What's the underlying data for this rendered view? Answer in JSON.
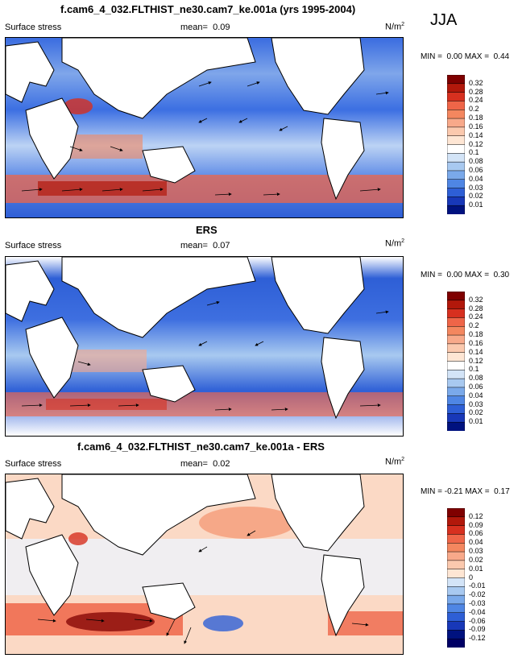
{
  "season": "JJA",
  "panels": [
    {
      "title": "f.cam6_4_032.FLTHIST_ne30.cam7_ke.001a (yrs 1995-2004)",
      "variable": "Surface stress",
      "mean_label": "mean=",
      "mean": "0.09",
      "units": "N/m",
      "units_sup": "2",
      "min_label": "MIN =",
      "min": "0.00",
      "max_label": "MAX =",
      "max": "0.44"
    },
    {
      "title": "ERS",
      "variable": "Surface stress",
      "mean_label": "mean=",
      "mean": "0.07",
      "units": "N/m",
      "units_sup": "2",
      "min_label": "MIN =",
      "min": "0.00",
      "max_label": "MAX =",
      "max": "0.30"
    },
    {
      "title": "f.cam6_4_032.FLTHIST_ne30.cam7_ke.001a - ERS",
      "variable": "Surface stress",
      "mean_label": "mean=",
      "mean": "0.02",
      "units": "N/m",
      "units_sup": "2",
      "min_label": "MIN =",
      "min": "-0.21",
      "max_label": "MAX =",
      "max": "0.17"
    }
  ],
  "colorbars": [
    {
      "labels": [
        "0.32",
        "0.28",
        "0.24",
        "0.2",
        "0.18",
        "0.16",
        "0.14",
        "0.12",
        "0.1",
        "0.08",
        "0.06",
        "0.04",
        "0.03",
        "0.02",
        "0.01"
      ],
      "colors": [
        "#7f0000",
        "#b2180b",
        "#d7301f",
        "#ef6548",
        "#f4875f",
        "#f8a98a",
        "#fbc9ae",
        "#fee6d4",
        "#ffffff",
        "#d3e4f7",
        "#a8c9f0",
        "#7aa9ea",
        "#4f86e4",
        "#2e5fd6",
        "#1838b8",
        "#00127f"
      ]
    },
    {
      "labels": [
        "0.32",
        "0.28",
        "0.24",
        "0.2",
        "0.18",
        "0.16",
        "0.14",
        "0.12",
        "0.1",
        "0.08",
        "0.06",
        "0.04",
        "0.03",
        "0.02",
        "0.01"
      ],
      "colors": [
        "#7f0000",
        "#b2180b",
        "#d7301f",
        "#ef6548",
        "#f4875f",
        "#f8a98a",
        "#fbc9ae",
        "#fee6d4",
        "#ffffff",
        "#d3e4f7",
        "#a8c9f0",
        "#7aa9ea",
        "#4f86e4",
        "#2e5fd6",
        "#1838b8",
        "#00127f"
      ]
    },
    {
      "labels": [
        "0.12",
        "0.09",
        "0.06",
        "0.04",
        "0.03",
        "0.02",
        "0.01",
        "0",
        "-0.01",
        "-0.02",
        "-0.03",
        "-0.04",
        "-0.06",
        "-0.09",
        "-0.12"
      ],
      "colors": [
        "#7f0000",
        "#b2180b",
        "#d7301f",
        "#ef6548",
        "#f4875f",
        "#f8a98a",
        "#fbc9ae",
        "#fee6d4",
        "#d3e4f7",
        "#a8c9f0",
        "#7aa9ea",
        "#4f86e4",
        "#2e5fd6",
        "#1838b8",
        "#00127f",
        "#000066"
      ]
    }
  ],
  "chart_data": [
    {
      "type": "heatmap",
      "title": "f.cam6_4_032.FLTHIST_ne30.cam7_ke.001a (yrs 1995-2004)",
      "field": "Surface stress magnitude with wind stress vectors (JJA)",
      "mean": 0.09,
      "min": 0.0,
      "max": 0.44,
      "units": "N/m2",
      "levels": [
        0.01,
        0.02,
        0.03,
        0.04,
        0.06,
        0.08,
        0.1,
        0.12,
        0.14,
        0.16,
        0.18,
        0.2,
        0.24,
        0.28,
        0.32
      ]
    },
    {
      "type": "heatmap",
      "title": "ERS",
      "field": "Surface stress magnitude with wind stress vectors (JJA)",
      "mean": 0.07,
      "min": 0.0,
      "max": 0.3,
      "units": "N/m2",
      "levels": [
        0.01,
        0.02,
        0.03,
        0.04,
        0.06,
        0.08,
        0.1,
        0.12,
        0.14,
        0.16,
        0.18,
        0.2,
        0.24,
        0.28,
        0.32
      ]
    },
    {
      "type": "heatmap",
      "title": "f.cam6_4_032.FLTHIST_ne30.cam7_ke.001a - ERS",
      "field": "Surface stress difference with vectors (JJA)",
      "mean": 0.02,
      "min": -0.21,
      "max": 0.17,
      "units": "N/m2",
      "levels": [
        -0.12,
        -0.09,
        -0.06,
        -0.04,
        -0.03,
        -0.02,
        -0.01,
        0,
        0.01,
        0.02,
        0.03,
        0.04,
        0.06,
        0.09,
        0.12
      ]
    }
  ]
}
